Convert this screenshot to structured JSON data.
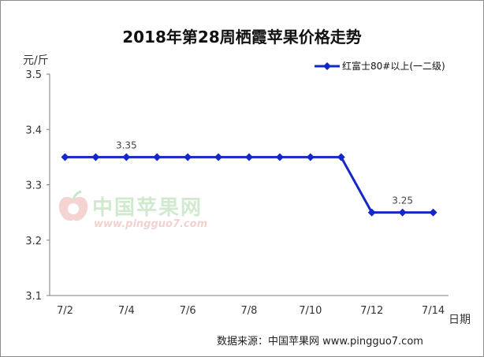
{
  "chart_data": {
    "type": "line",
    "title": "2018年第28周栖霞苹果价格走势",
    "ylabel": "元/斤",
    "xlabel": "日期",
    "ylim": [
      3.1,
      3.5
    ],
    "yticks": [
      "3.1",
      "3.2",
      "3.3",
      "3.4",
      "3.5"
    ],
    "x_tick_labels": [
      "7/2",
      "7/4",
      "7/6",
      "7/8",
      "7/10",
      "7/12",
      "7/14"
    ],
    "grid": false,
    "legend_position": "top-right",
    "series": [
      {
        "name": "红富士80#以上(一二级)",
        "color": "#1428c8",
        "x": [
          "7/2",
          "7/3",
          "7/4",
          "7/5",
          "7/6",
          "7/7",
          "7/8",
          "7/9",
          "7/10",
          "7/11",
          "7/12",
          "7/13",
          "7/14"
        ],
        "values": [
          3.35,
          3.35,
          3.35,
          3.35,
          3.35,
          3.35,
          3.35,
          3.35,
          3.35,
          3.35,
          3.25,
          3.25,
          3.25
        ]
      }
    ],
    "annotations": [
      {
        "x": "7/4",
        "y": 3.35,
        "text": "3.35"
      },
      {
        "x": "7/13",
        "y": 3.25,
        "text": "3.25"
      }
    ]
  },
  "source_text": "数据来源：中国苹果网 www.pingguo7.com",
  "watermark": {
    "cn": "中国苹果网",
    "url": "www.pingguo7.com"
  }
}
